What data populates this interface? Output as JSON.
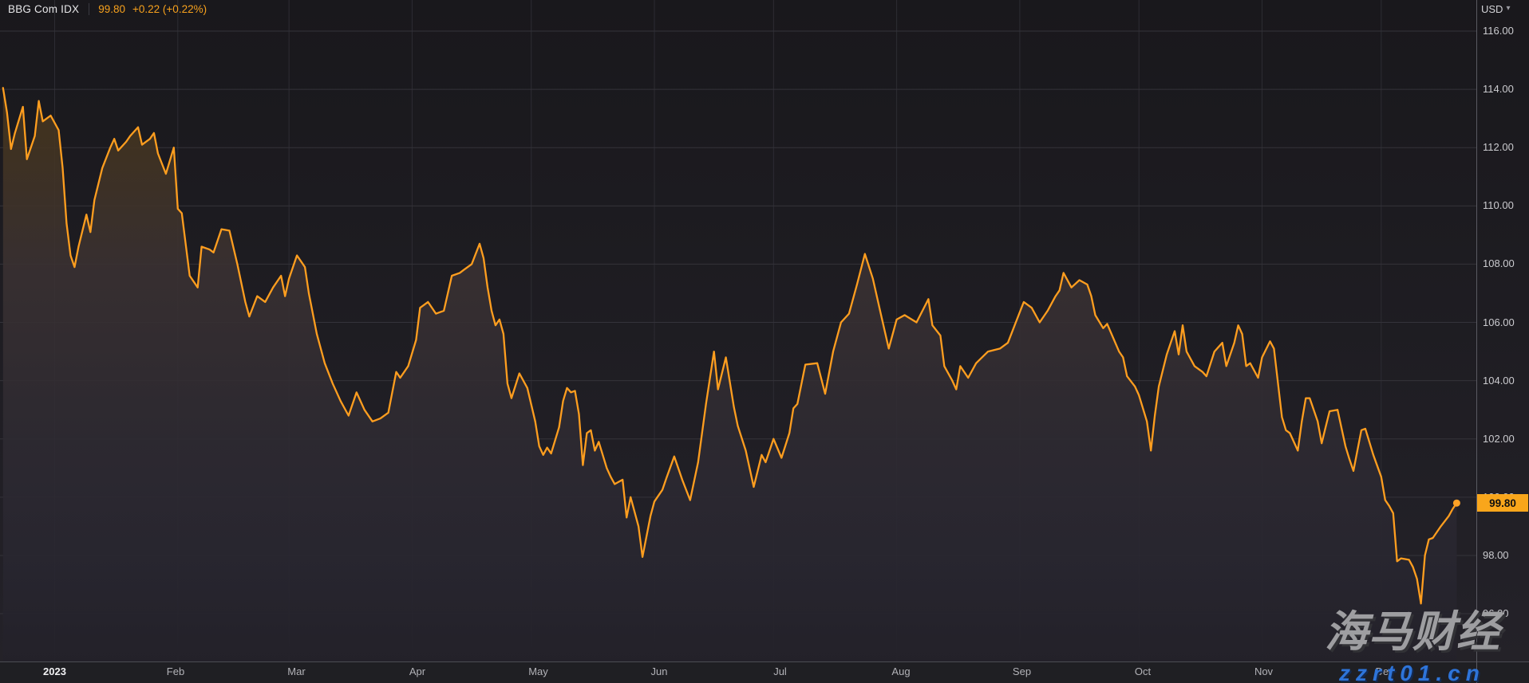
{
  "header": {
    "ticker": "BBG Com IDX",
    "last_price": "99.80",
    "change": "+0.22 (+0.22%)"
  },
  "axis": {
    "currency": "USD",
    "currency_caret": "▾",
    "y_tick_values": [
      116,
      114,
      112,
      110,
      108,
      106,
      104,
      102,
      100,
      98,
      96
    ],
    "y_tick_labels": [
      "116.00",
      "114.00",
      "112.00",
      "110.00",
      "108.00",
      "106.00",
      "104.00",
      "102.00",
      "100.00",
      "98.00",
      "96.00"
    ],
    "month_labels": [
      "2023",
      "Feb",
      "Mar",
      "Apr",
      "May",
      "Jun",
      "Jul",
      "Aug",
      "Sep",
      "Oct",
      "Nov",
      "Dec"
    ]
  },
  "price_badge": "99.80",
  "watermark": {
    "cjk": "海马财经",
    "url": "zzrt01.cn"
  },
  "colors": {
    "line": "#ff9e1f",
    "dot": "#ffa226",
    "badge_bg": "#f9a61b",
    "accent_text": "#f7a11d",
    "grid_h": "#34333a",
    "grid_v": "#2d2c33",
    "fill_top": "#4d381f",
    "fill_mid": "#383134",
    "fill_bottom": "#232129",
    "bg_top": "#19181c",
    "bg_bottom": "#242229"
  },
  "chart_data": {
    "type": "area",
    "title": "BBG Com IDX",
    "subtitle": "",
    "xlabel": "",
    "ylabel": "USD",
    "ylim": [
      95.2,
      116.6
    ],
    "x_range": [
      "2022-12-19",
      "2023-12-20"
    ],
    "grid": true,
    "legend_position": "none",
    "y_gridlines": [
      116,
      114,
      112,
      110,
      108,
      106,
      104,
      102,
      100,
      98,
      96
    ],
    "x_gridlines": [
      "2023-01-01",
      "2023-02-01",
      "2023-03-01",
      "2023-04-01",
      "2023-05-01",
      "2023-06-01",
      "2023-07-01",
      "2023-08-01",
      "2023-09-01",
      "2023-10-01",
      "2023-11-01",
      "2023-12-01"
    ],
    "last_point": {
      "date": "2023-12-20",
      "value": 99.8,
      "change": 0.22,
      "change_pct": 0.22
    },
    "series": [
      {
        "name": "BBG Com IDX (USD)",
        "points": [
          [
            "2022-12-19",
            114.05
          ],
          [
            "2022-12-20",
            113.2
          ],
          [
            "2022-12-21",
            111.95
          ],
          [
            "2022-12-22",
            112.5
          ],
          [
            "2022-12-24",
            113.4
          ],
          [
            "2022-12-25",
            111.6
          ],
          [
            "2022-12-27",
            112.4
          ],
          [
            "2022-12-28",
            113.6
          ],
          [
            "2022-12-29",
            112.9
          ],
          [
            "2022-12-30",
            113.0
          ],
          [
            "2022-12-31",
            113.1
          ],
          [
            "2023-01-02",
            112.6
          ],
          [
            "2023-01-03",
            111.3
          ],
          [
            "2023-01-04",
            109.4
          ],
          [
            "2023-01-05",
            108.3
          ],
          [
            "2023-01-06",
            107.9
          ],
          [
            "2023-01-07",
            108.6
          ],
          [
            "2023-01-09",
            109.7
          ],
          [
            "2023-01-10",
            109.1
          ],
          [
            "2023-01-11",
            110.2
          ],
          [
            "2023-01-13",
            111.3
          ],
          [
            "2023-01-15",
            112.0
          ],
          [
            "2023-01-16",
            112.3
          ],
          [
            "2023-01-17",
            111.9
          ],
          [
            "2023-01-19",
            112.2
          ],
          [
            "2023-01-20",
            112.4
          ],
          [
            "2023-01-22",
            112.7
          ],
          [
            "2023-01-23",
            112.1
          ],
          [
            "2023-01-25",
            112.3
          ],
          [
            "2023-01-26",
            112.5
          ],
          [
            "2023-01-27",
            111.8
          ],
          [
            "2023-01-29",
            111.1
          ],
          [
            "2023-01-31",
            112.0
          ],
          [
            "2023-02-01",
            109.9
          ],
          [
            "2023-02-02",
            109.75
          ],
          [
            "2023-02-04",
            107.6
          ],
          [
            "2023-02-06",
            107.2
          ],
          [
            "2023-02-07",
            108.6
          ],
          [
            "2023-02-09",
            108.5
          ],
          [
            "2023-02-10",
            108.4
          ],
          [
            "2023-02-12",
            109.2
          ],
          [
            "2023-02-14",
            109.15
          ],
          [
            "2023-02-16",
            108.0
          ],
          [
            "2023-02-18",
            106.7
          ],
          [
            "2023-02-19",
            106.2
          ],
          [
            "2023-02-21",
            106.9
          ],
          [
            "2023-02-23",
            106.7
          ],
          [
            "2023-02-25",
            107.2
          ],
          [
            "2023-02-27",
            107.6
          ],
          [
            "2023-02-28",
            106.9
          ],
          [
            "2023-03-01",
            107.5
          ],
          [
            "2023-03-03",
            108.3
          ],
          [
            "2023-03-05",
            107.9
          ],
          [
            "2023-03-06",
            107.0
          ],
          [
            "2023-03-08",
            105.6
          ],
          [
            "2023-03-10",
            104.6
          ],
          [
            "2023-03-12",
            103.9
          ],
          [
            "2023-03-14",
            103.3
          ],
          [
            "2023-03-16",
            102.8
          ],
          [
            "2023-03-18",
            103.6
          ],
          [
            "2023-03-20",
            103.0
          ],
          [
            "2023-03-22",
            102.6
          ],
          [
            "2023-03-24",
            102.7
          ],
          [
            "2023-03-26",
            102.9
          ],
          [
            "2023-03-28",
            104.3
          ],
          [
            "2023-03-29",
            104.1
          ],
          [
            "2023-03-31",
            104.5
          ],
          [
            "2023-04-02",
            105.4
          ],
          [
            "2023-04-03",
            106.5
          ],
          [
            "2023-04-04",
            106.6
          ],
          [
            "2023-04-05",
            106.7
          ],
          [
            "2023-04-07",
            106.3
          ],
          [
            "2023-04-09",
            106.4
          ],
          [
            "2023-04-11",
            107.6
          ],
          [
            "2023-04-13",
            107.7
          ],
          [
            "2023-04-14",
            107.8
          ],
          [
            "2023-04-16",
            108.0
          ],
          [
            "2023-04-18",
            108.7
          ],
          [
            "2023-04-19",
            108.2
          ],
          [
            "2023-04-20",
            107.2
          ],
          [
            "2023-04-21",
            106.4
          ],
          [
            "2023-04-22",
            105.9
          ],
          [
            "2023-04-23",
            106.1
          ],
          [
            "2023-04-24",
            105.6
          ],
          [
            "2023-04-25",
            103.9
          ],
          [
            "2023-04-26",
            103.4
          ],
          [
            "2023-04-28",
            104.25
          ],
          [
            "2023-04-30",
            103.75
          ],
          [
            "2023-05-02",
            102.6
          ],
          [
            "2023-05-03",
            101.75
          ],
          [
            "2023-05-04",
            101.45
          ],
          [
            "2023-05-05",
            101.7
          ],
          [
            "2023-05-06",
            101.5
          ],
          [
            "2023-05-08",
            102.4
          ],
          [
            "2023-05-09",
            103.3
          ],
          [
            "2023-05-10",
            103.75
          ],
          [
            "2023-05-11",
            103.6
          ],
          [
            "2023-05-12",
            103.65
          ],
          [
            "2023-05-13",
            102.85
          ],
          [
            "2023-05-14",
            101.1
          ],
          [
            "2023-05-15",
            102.2
          ],
          [
            "2023-05-16",
            102.3
          ],
          [
            "2023-05-17",
            101.6
          ],
          [
            "2023-05-18",
            101.9
          ],
          [
            "2023-05-20",
            101.0
          ],
          [
            "2023-05-21",
            100.7
          ],
          [
            "2023-05-22",
            100.45
          ],
          [
            "2023-05-24",
            100.6
          ],
          [
            "2023-05-25",
            99.3
          ],
          [
            "2023-05-26",
            100.0
          ],
          [
            "2023-05-28",
            99.0
          ],
          [
            "2023-05-29",
            97.95
          ],
          [
            "2023-05-31",
            99.35
          ],
          [
            "2023-06-01",
            99.85
          ],
          [
            "2023-06-03",
            100.25
          ],
          [
            "2023-06-04",
            100.65
          ],
          [
            "2023-06-06",
            101.4
          ],
          [
            "2023-06-08",
            100.6
          ],
          [
            "2023-06-10",
            99.9
          ],
          [
            "2023-06-12",
            101.2
          ],
          [
            "2023-06-14",
            103.2
          ],
          [
            "2023-06-16",
            105.0
          ],
          [
            "2023-06-17",
            103.7
          ],
          [
            "2023-06-19",
            104.8
          ],
          [
            "2023-06-21",
            103.1
          ],
          [
            "2023-06-22",
            102.45
          ],
          [
            "2023-06-24",
            101.6
          ],
          [
            "2023-06-26",
            100.35
          ],
          [
            "2023-06-28",
            101.45
          ],
          [
            "2023-06-29",
            101.2
          ],
          [
            "2023-07-01",
            102.0
          ],
          [
            "2023-07-03",
            101.35
          ],
          [
            "2023-07-05",
            102.2
          ],
          [
            "2023-07-06",
            103.05
          ],
          [
            "2023-07-07",
            103.2
          ],
          [
            "2023-07-09",
            104.55
          ],
          [
            "2023-07-12",
            104.6
          ],
          [
            "2023-07-14",
            103.55
          ],
          [
            "2023-07-16",
            105.0
          ],
          [
            "2023-07-18",
            106.0
          ],
          [
            "2023-07-20",
            106.3
          ],
          [
            "2023-07-22",
            107.3
          ],
          [
            "2023-07-24",
            108.35
          ],
          [
            "2023-07-26",
            107.5
          ],
          [
            "2023-07-28",
            106.3
          ],
          [
            "2023-07-30",
            105.1
          ],
          [
            "2023-08-01",
            106.1
          ],
          [
            "2023-08-03",
            106.25
          ],
          [
            "2023-08-06",
            106.0
          ],
          [
            "2023-08-09",
            106.8
          ],
          [
            "2023-08-10",
            105.9
          ],
          [
            "2023-08-12",
            105.55
          ],
          [
            "2023-08-13",
            104.5
          ],
          [
            "2023-08-15",
            104.0
          ],
          [
            "2023-08-16",
            103.7
          ],
          [
            "2023-08-17",
            104.5
          ],
          [
            "2023-08-19",
            104.1
          ],
          [
            "2023-08-21",
            104.6
          ],
          [
            "2023-08-24",
            105.0
          ],
          [
            "2023-08-27",
            105.1
          ],
          [
            "2023-08-29",
            105.3
          ],
          [
            "2023-08-31",
            106.0
          ],
          [
            "2023-09-02",
            106.7
          ],
          [
            "2023-09-04",
            106.5
          ],
          [
            "2023-09-06",
            106.0
          ],
          [
            "2023-09-08",
            106.4
          ],
          [
            "2023-09-10",
            106.9
          ],
          [
            "2023-09-11",
            107.1
          ],
          [
            "2023-09-12",
            107.7
          ],
          [
            "2023-09-14",
            107.2
          ],
          [
            "2023-09-16",
            107.45
          ],
          [
            "2023-09-18",
            107.3
          ],
          [
            "2023-09-19",
            106.9
          ],
          [
            "2023-09-20",
            106.25
          ],
          [
            "2023-09-22",
            105.8
          ],
          [
            "2023-09-23",
            105.95
          ],
          [
            "2023-09-26",
            105.0
          ],
          [
            "2023-09-27",
            104.8
          ],
          [
            "2023-09-28",
            104.15
          ],
          [
            "2023-09-30",
            103.8
          ],
          [
            "2023-10-01",
            103.5
          ],
          [
            "2023-10-03",
            102.6
          ],
          [
            "2023-10-04",
            101.6
          ],
          [
            "2023-10-05",
            102.8
          ],
          [
            "2023-10-06",
            103.8
          ],
          [
            "2023-10-08",
            104.9
          ],
          [
            "2023-10-10",
            105.7
          ],
          [
            "2023-10-11",
            104.9
          ],
          [
            "2023-10-12",
            105.9
          ],
          [
            "2023-10-13",
            105.0
          ],
          [
            "2023-10-15",
            104.5
          ],
          [
            "2023-10-17",
            104.3
          ],
          [
            "2023-10-18",
            104.15
          ],
          [
            "2023-10-20",
            105.0
          ],
          [
            "2023-10-22",
            105.3
          ],
          [
            "2023-10-23",
            104.5
          ],
          [
            "2023-10-25",
            105.3
          ],
          [
            "2023-10-26",
            105.9
          ],
          [
            "2023-10-27",
            105.6
          ],
          [
            "2023-10-28",
            104.5
          ],
          [
            "2023-10-29",
            104.6
          ],
          [
            "2023-10-31",
            104.1
          ],
          [
            "2023-11-01",
            104.8
          ],
          [
            "2023-11-03",
            105.35
          ],
          [
            "2023-11-04",
            105.1
          ],
          [
            "2023-11-06",
            102.75
          ],
          [
            "2023-11-07",
            102.3
          ],
          [
            "2023-11-08",
            102.2
          ],
          [
            "2023-11-10",
            101.6
          ],
          [
            "2023-11-11",
            102.6
          ],
          [
            "2023-11-12",
            103.4
          ],
          [
            "2023-11-13",
            103.4
          ],
          [
            "2023-11-15",
            102.6
          ],
          [
            "2023-11-16",
            101.85
          ],
          [
            "2023-11-17",
            102.4
          ],
          [
            "2023-11-18",
            102.95
          ],
          [
            "2023-11-20",
            103.0
          ],
          [
            "2023-11-22",
            101.75
          ],
          [
            "2023-11-23",
            101.3
          ],
          [
            "2023-11-24",
            100.9
          ],
          [
            "2023-11-26",
            102.3
          ],
          [
            "2023-11-27",
            102.35
          ],
          [
            "2023-11-29",
            101.45
          ],
          [
            "2023-12-01",
            100.7
          ],
          [
            "2023-12-02",
            99.9
          ],
          [
            "2023-12-03",
            99.7
          ],
          [
            "2023-12-04",
            99.45
          ],
          [
            "2023-12-05",
            97.8
          ],
          [
            "2023-12-06",
            97.9
          ],
          [
            "2023-12-08",
            97.85
          ],
          [
            "2023-12-09",
            97.6
          ],
          [
            "2023-12-10",
            97.2
          ],
          [
            "2023-12-11",
            96.35
          ],
          [
            "2023-12-12",
            98.0
          ],
          [
            "2023-12-13",
            98.55
          ],
          [
            "2023-12-14",
            98.6
          ],
          [
            "2023-12-16",
            99.0
          ],
          [
            "2023-12-18",
            99.35
          ],
          [
            "2023-12-19",
            99.6
          ],
          [
            "2023-12-20",
            99.8
          ]
        ]
      }
    ]
  }
}
